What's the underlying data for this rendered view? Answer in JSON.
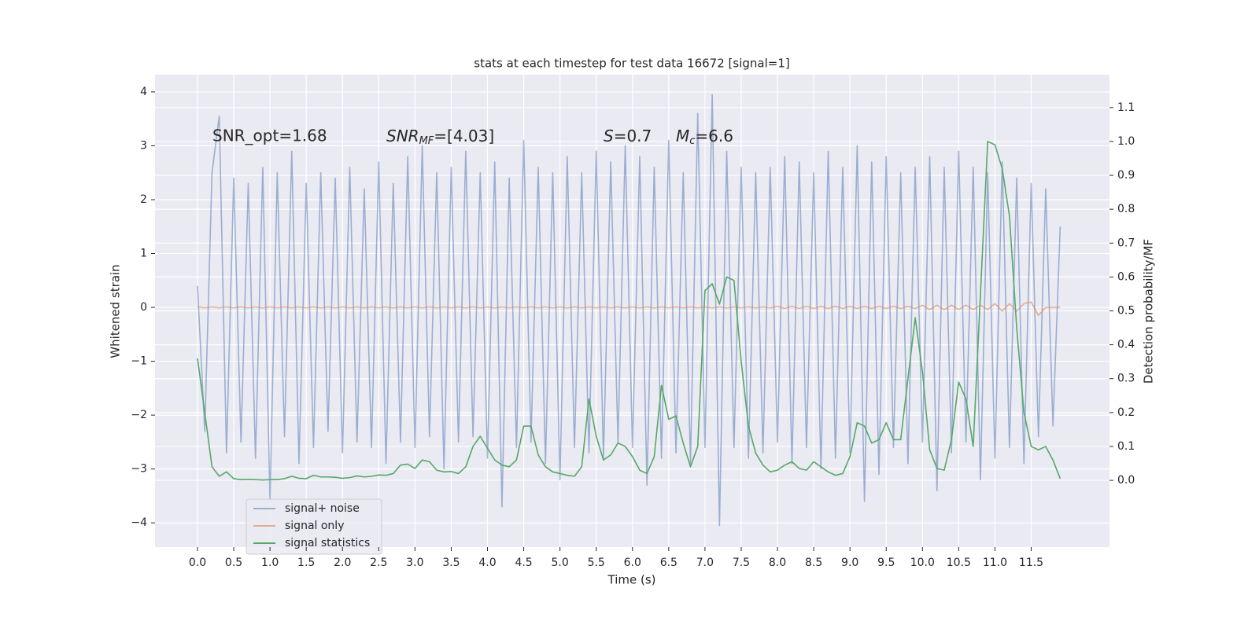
{
  "chart_data": {
    "type": "line",
    "title": "stats at each timestep for test data 16672 [signal=1]",
    "xlabel": "Time (s)",
    "ylabel": "Whitened strain",
    "y2label": "Detection probability/MF",
    "annotations": [
      [
        "SNR_opt=1.68"
      ],
      [
        "SNR",
        "MF",
        "=[4.03]"
      ],
      [
        "S",
        "=0.7"
      ],
      [
        "M",
        "c",
        "=6.6"
      ]
    ],
    "grid": true,
    "legend": "lower left",
    "xlim": [
      -0.586,
      12.58
    ],
    "ylim": [
      -4.45,
      4.32
    ],
    "y2lim": [
      -0.197,
      1.197
    ],
    "xticks": [
      {
        "value": 0,
        "label": "0.0"
      },
      0.5,
      {
        "value": 1,
        "label": "1.0"
      },
      1.5,
      {
        "value": 2,
        "label": "2.0"
      },
      2.5,
      {
        "value": 3,
        "label": "3.0"
      },
      3.5,
      {
        "value": 4,
        "label": "4.0"
      },
      4.5,
      {
        "value": 5,
        "label": "5.0"
      },
      5.5,
      {
        "value": 6,
        "label": "6.0"
      },
      6.5,
      {
        "value": 7,
        "label": "7.0"
      },
      7.5,
      {
        "value": 8,
        "label": "8.0"
      },
      8.5,
      {
        "value": 9,
        "label": "9.0"
      },
      9.5,
      {
        "value": 10,
        "label": "10.0"
      },
      10.5,
      {
        "value": 11,
        "label": "11.0"
      },
      11.5
    ],
    "yticks": [
      {
        "value": -4,
        "label": "−4"
      },
      {
        "value": -3,
        "label": "−3"
      },
      {
        "value": -2,
        "label": "−2"
      },
      {
        "value": -1,
        "label": "−1"
      },
      0,
      1,
      2,
      3,
      4
    ],
    "y2ticks": [
      {
        "value": 0,
        "label": "0.0"
      },
      0.1,
      0.2,
      0.3,
      0.4,
      0.5,
      0.6,
      0.7,
      0.8,
      0.9,
      {
        "value": 1,
        "label": "1.0"
      },
      1.1
    ],
    "x": [
      0.0,
      0.1,
      0.2,
      0.3,
      0.4,
      0.5,
      0.6,
      0.7,
      0.8,
      0.9,
      1.0,
      1.1,
      1.2,
      1.3,
      1.4,
      1.5,
      1.6,
      1.7,
      1.8,
      1.9,
      2.0,
      2.1,
      2.2,
      2.3,
      2.4,
      2.5,
      2.6,
      2.7,
      2.8,
      2.9,
      3.0,
      3.1,
      3.2,
      3.3,
      3.4,
      3.5,
      3.6,
      3.7,
      3.8,
      3.9,
      4.0,
      4.1,
      4.2,
      4.3,
      4.4,
      4.5,
      4.6,
      4.7,
      4.8,
      4.9,
      5.0,
      5.1,
      5.2,
      5.3,
      5.4,
      5.5,
      5.6,
      5.7,
      5.8,
      5.9,
      6.0,
      6.1,
      6.2,
      6.3,
      6.4,
      6.5,
      6.6,
      6.7,
      6.8,
      6.9,
      7.0,
      7.1,
      7.2,
      7.3,
      7.4,
      7.5,
      7.6,
      7.7,
      7.8,
      7.9,
      8.0,
      8.1,
      8.2,
      8.3,
      8.4,
      8.5,
      8.6,
      8.7,
      8.8,
      8.9,
      9.0,
      9.1,
      9.2,
      9.3,
      9.4,
      9.5,
      9.6,
      9.7,
      9.8,
      9.9,
      10.0,
      10.1,
      10.2,
      10.3,
      10.4,
      10.5,
      10.6,
      10.7,
      10.8,
      10.9,
      11.0,
      11.1,
      11.2,
      11.3,
      11.4,
      11.5,
      11.6,
      11.7,
      11.8,
      11.9
    ],
    "series": [
      {
        "name": "signal+ noise",
        "color": "#4c72b0",
        "opacity": 0.5,
        "values": [
          0.4,
          -2.3,
          2.5,
          3.55,
          -2.7,
          2.4,
          -2.5,
          2.3,
          -2.8,
          2.6,
          -3.6,
          2.5,
          -2.4,
          2.9,
          -2.9,
          2.3,
          -2.6,
          2.5,
          -2.3,
          2.4,
          -2.7,
          2.6,
          -2.5,
          2.2,
          -2.6,
          2.7,
          -2.9,
          2.3,
          -2.5,
          2.8,
          -2.6,
          3.0,
          -2.4,
          2.5,
          -3.0,
          2.6,
          -2.5,
          2.9,
          -2.4,
          2.5,
          -2.8,
          2.7,
          -3.7,
          2.4,
          -2.6,
          3.1,
          -2.5,
          2.6,
          -2.9,
          2.5,
          -3.2,
          2.8,
          -2.6,
          2.5,
          -2.7,
          2.9,
          -2.8,
          2.7,
          -2.5,
          3.0,
          -2.6,
          2.8,
          -3.3,
          2.6,
          -2.8,
          3.1,
          -2.7,
          2.5,
          -2.9,
          3.6,
          -2.6,
          3.95,
          -4.05,
          2.9,
          -2.6,
          2.6,
          -2.8,
          2.5,
          -2.7,
          2.6,
          -2.5,
          2.8,
          -2.9,
          2.7,
          -2.6,
          2.5,
          -3.0,
          2.9,
          -2.8,
          2.6,
          -2.7,
          3.0,
          -3.6,
          2.7,
          -3.1,
          2.8,
          -2.6,
          2.5,
          -2.9,
          2.6,
          -2.5,
          2.8,
          -3.4,
          2.6,
          -2.7,
          2.9,
          -2.5,
          2.6,
          -3.2,
          2.5,
          -2.8,
          2.7,
          -2.6,
          2.4,
          -2.9,
          2.3,
          -2.4,
          2.2,
          -2.2,
          1.5
        ]
      },
      {
        "name": "signal only",
        "color": "#dd8452",
        "opacity": 0.6,
        "values": [
          0.01,
          -0.01,
          0.01,
          -0.01,
          0.01,
          -0.01,
          0.01,
          -0.01,
          0.01,
          -0.01,
          0.01,
          -0.01,
          0.01,
          -0.01,
          0.01,
          -0.01,
          0.01,
          -0.01,
          0.01,
          -0.01,
          0.01,
          -0.01,
          0.01,
          -0.01,
          0.01,
          -0.01,
          0.01,
          -0.01,
          0.01,
          -0.01,
          0.01,
          -0.01,
          0.01,
          -0.01,
          0.01,
          -0.01,
          0.01,
          -0.01,
          0.01,
          -0.01,
          0.01,
          -0.01,
          0.01,
          -0.01,
          0.01,
          -0.01,
          0.01,
          -0.01,
          0.01,
          -0.01,
          0.01,
          -0.01,
          0.01,
          -0.01,
          0.01,
          -0.01,
          0.01,
          -0.01,
          0.01,
          -0.01,
          0.01,
          -0.01,
          0.01,
          -0.01,
          0.01,
          -0.01,
          0.01,
          -0.01,
          0.01,
          -0.01,
          0.01,
          -0.01,
          0.01,
          -0.01,
          0.01,
          -0.01,
          0.01,
          -0.01,
          0.01,
          -0.01,
          0.02,
          -0.02,
          0.02,
          -0.02,
          0.02,
          -0.02,
          0.02,
          -0.02,
          0.02,
          -0.02,
          0.02,
          -0.02,
          0.02,
          -0.02,
          0.02,
          -0.02,
          0.02,
          -0.02,
          0.02,
          -0.02,
          0.04,
          -0.04,
          0.04,
          -0.04,
          0.04,
          -0.04,
          0.04,
          -0.04,
          0.04,
          -0.04,
          0.07,
          -0.07,
          0.07,
          -0.07,
          0.07,
          0.1,
          -0.15,
          0.0,
          0.0,
          0.0
        ]
      },
      {
        "name": "signal statistics",
        "color": "#55a868",
        "opacity": 1,
        "axis": "y2",
        "values": [
          0.36,
          0.2,
          0.04,
          0.012,
          0.025,
          0.005,
          0.002,
          0.003,
          0.002,
          0.001,
          0.002,
          0.002,
          0.005,
          0.012,
          0.006,
          0.005,
          0.015,
          0.01,
          0.01,
          0.009,
          0.006,
          0.008,
          0.013,
          0.01,
          0.012,
          0.016,
          0.015,
          0.02,
          0.045,
          0.048,
          0.035,
          0.06,
          0.055,
          0.03,
          0.025,
          0.026,
          0.02,
          0.04,
          0.1,
          0.13,
          0.095,
          0.06,
          0.045,
          0.04,
          0.06,
          0.16,
          0.16,
          0.075,
          0.04,
          0.025,
          0.02,
          0.015,
          0.012,
          0.04,
          0.24,
          0.13,
          0.06,
          0.075,
          0.11,
          0.1,
          0.07,
          0.03,
          0.02,
          0.07,
          0.28,
          0.18,
          0.19,
          0.11,
          0.04,
          0.1,
          0.56,
          0.58,
          0.52,
          0.6,
          0.59,
          0.35,
          0.16,
          0.08,
          0.045,
          0.025,
          0.03,
          0.045,
          0.055,
          0.035,
          0.03,
          0.055,
          0.04,
          0.025,
          0.015,
          0.02,
          0.07,
          0.17,
          0.16,
          0.11,
          0.12,
          0.17,
          0.12,
          0.12,
          0.3,
          0.48,
          0.32,
          0.09,
          0.035,
          0.03,
          0.12,
          0.29,
          0.24,
          0.1,
          0.55,
          1.0,
          0.99,
          0.92,
          0.78,
          0.45,
          0.2,
          0.1,
          0.09,
          0.1,
          0.06,
          0.005
        ]
      }
    ]
  }
}
